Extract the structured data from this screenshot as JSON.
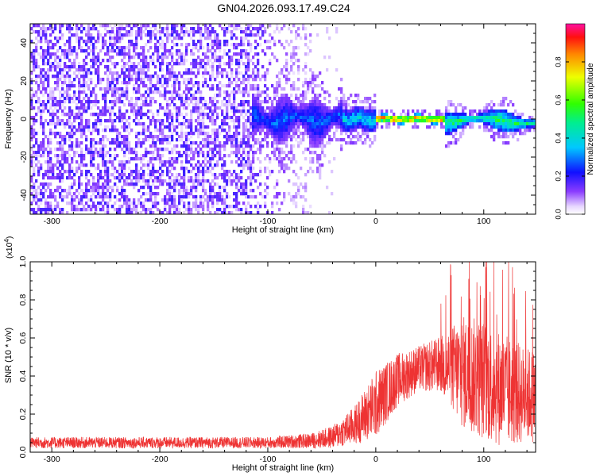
{
  "title": "GN04.2026.093.17.49.C24",
  "chart_data": [
    {
      "type": "heatmap",
      "ylabel": "Frequency (Hz)",
      "xlabel": "Height of straight line (km)",
      "xlim": [
        -320,
        148
      ],
      "ylim": [
        -50,
        50
      ],
      "xticks": [
        -300,
        -200,
        -100,
        0,
        100
      ],
      "yticks": [
        -40,
        -20,
        0,
        20,
        40
      ],
      "colorbar": {
        "label": "Normalized spectral amplitude",
        "range": [
          0,
          1
        ],
        "ticks": [
          "0.0",
          "0.2",
          "0.4",
          "0.6",
          "0.8"
        ],
        "colormap": "hsv-like rainbow (white/violet low → blue → cyan → green → yellow → orange → red → magenta high)"
      },
      "features": [
        {
          "x_range": [
            -320,
            -60
          ],
          "y_range": [
            -50,
            50
          ],
          "amplitude": 0.15
        },
        {
          "x_range": [
            -115,
            -30
          ],
          "y_range": [
            -15,
            15
          ],
          "amplitude": 0.3
        },
        {
          "x_range": [
            -30,
            0
          ],
          "y_range": [
            -6,
            6
          ],
          "amplitude": 0.45
        },
        {
          "x_range": [
            0,
            65
          ],
          "y_center": 0,
          "y_halfwidth": 2,
          "amplitude": 0.95
        },
        {
          "x_range": [
            65,
            148
          ],
          "y_center": 0,
          "y_halfwidth": 5,
          "amplitude": 0.55
        }
      ]
    },
    {
      "type": "line",
      "ylabel": "SNR (10 * v/v)",
      "xlabel": "Height of straight line (km)",
      "y_multiplier": "(x10",
      "y_multiplier_exp": "4",
      "xlim": [
        -320,
        148
      ],
      "ylim": [
        0,
        1
      ],
      "xticks": [
        -300,
        -200,
        -100,
        0,
        100
      ],
      "yticks": [
        "0.0",
        "0.2",
        "0.4",
        "0.6",
        "0.8",
        "1.0"
      ],
      "color": "#ee3333",
      "envelope": {
        "x": [
          -320,
          -100,
          -60,
          -40,
          -20,
          0,
          20,
          40,
          60,
          80,
          100,
          120,
          140,
          148
        ],
        "mean": [
          0.05,
          0.05,
          0.06,
          0.08,
          0.14,
          0.25,
          0.38,
          0.44,
          0.46,
          0.42,
          0.38,
          0.32,
          0.3,
          0.3
        ],
        "spread": [
          0.03,
          0.03,
          0.04,
          0.06,
          0.1,
          0.18,
          0.14,
          0.12,
          0.15,
          0.3,
          0.32,
          0.3,
          0.25,
          0.25
        ]
      }
    }
  ]
}
